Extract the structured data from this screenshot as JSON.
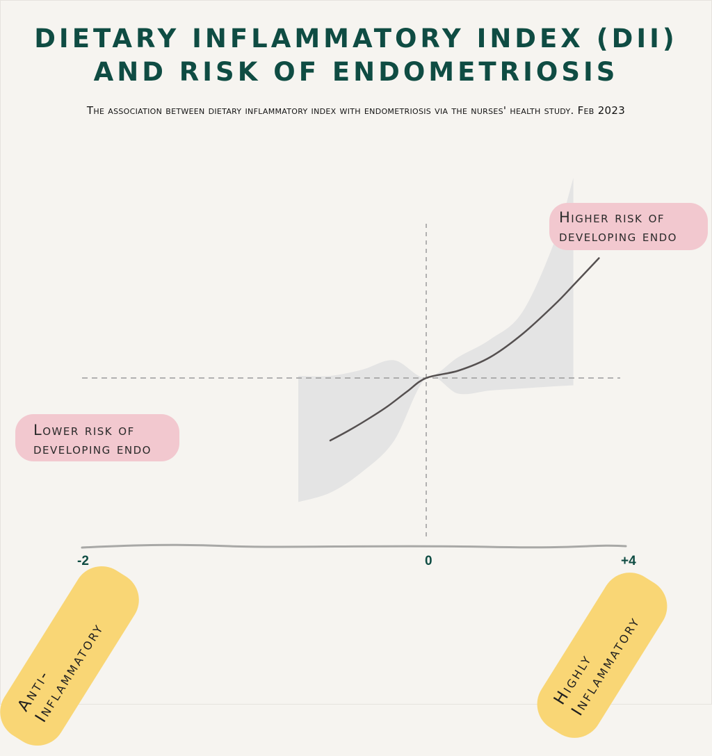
{
  "title_line1": "Dietary Inflammatory Index (DII)",
  "title_line2": "and risk of endometriosis",
  "subtitle": "The association between dietary inflammatory index with endometriosis via the nurses' health study. Feb 2023",
  "callouts": {
    "lower": "Lower risk of\ndeveloping endo",
    "higher": "Higher risk of\ndeveloping endo"
  },
  "tags": {
    "anti": "Anti-\nInflammatory",
    "high": "Highly\nInflammatory"
  },
  "colors": {
    "title": "#0f4c43",
    "curve": "#555050",
    "band": "#e4e4e4",
    "callout": "#f2c8cf",
    "tag": "#f9d675",
    "background": "#f6f4f0"
  },
  "chart_data": {
    "type": "line",
    "title": "",
    "xlabel": "",
    "ylabel": "",
    "x_ticks": [
      "-2",
      "0",
      "+4"
    ],
    "xlim": [
      -2,
      4
    ],
    "ylim": [
      -1.2,
      1.2
    ],
    "reference_lines": {
      "x": 0,
      "y": 0
    },
    "series": [
      {
        "x": [
          -1.5,
          -1.2,
          -0.9,
          -0.6,
          -0.3,
          0,
          0.5,
          1.0,
          1.5,
          2.0,
          2.3,
          2.7
        ],
        "values": [
          -0.6,
          -0.5,
          -0.39,
          -0.27,
          -0.13,
          0,
          0.07,
          0.2,
          0.42,
          0.7,
          0.89,
          1.15
        ]
      }
    ],
    "confidence_band": {
      "x": [
        -2,
        -1.5,
        -1.0,
        -0.5,
        0,
        0.5,
        1.0,
        1.5,
        2.0,
        2.3
      ],
      "upper": [
        0.02,
        0.02,
        0.08,
        0.17,
        0.0,
        0.2,
        0.37,
        0.63,
        1.3,
        1.92
      ],
      "lower": [
        -1.19,
        -1.1,
        -0.9,
        -0.6,
        0.0,
        -0.15,
        -0.12,
        -0.1,
        -0.08,
        -0.07
      ]
    }
  }
}
